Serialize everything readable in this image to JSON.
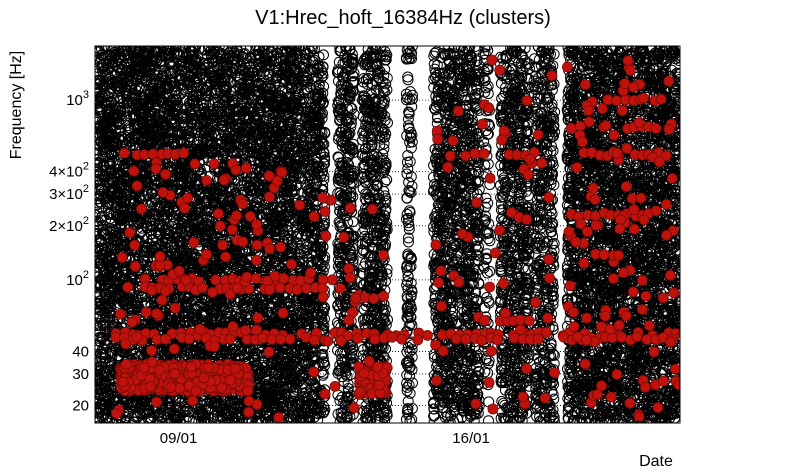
{
  "chart_data": {
    "type": "scatter",
    "title": "V1:Hrec_hoft_16384Hz (clusters)",
    "xlabel": "Date",
    "ylabel": "Frequency [Hz]",
    "x_ticks": [
      {
        "date": "2016-01-09",
        "label": "09/01"
      },
      {
        "date": "2016-01-16",
        "label": "16/01"
      }
    ],
    "xlim": [
      "2016-01-07",
      "2016-01-21"
    ],
    "ylim": [
      16,
      2000
    ],
    "y_scale": "log",
    "y_ticks": [
      {
        "value": 20,
        "label": "20"
      },
      {
        "value": 30,
        "label": "30"
      },
      {
        "value": 40,
        "label": "40"
      },
      {
        "value": 100,
        "label": "10",
        "exp": "2"
      },
      {
        "value": 200,
        "label": "2×10",
        "exp": "2"
      },
      {
        "value": 300,
        "label": "3×10",
        "exp": "2"
      },
      {
        "value": 400,
        "label": "4×10",
        "exp": "2"
      },
      {
        "value": 1000,
        "label": "10",
        "exp": "3"
      }
    ],
    "grid": true,
    "series": [
      {
        "marker": "open-circle",
        "color": "#000000",
        "segments": [
          {
            "start": "2016-01-07.00",
            "end": "2016-01-09.20",
            "density": 55
          },
          {
            "start": "2016-01-09.20",
            "end": "2016-01-11.60",
            "density": 55
          },
          {
            "start": "2016-01-11.60",
            "end": "2016-01-12.50",
            "density": 50
          },
          {
            "start": "2016-01-12.80",
            "end": "2016-01-13.20",
            "density": 45
          },
          {
            "start": "2016-01-13.40",
            "end": "2016-01-14.00",
            "density": 45
          },
          {
            "start": "2016-01-14.45",
            "end": "2016-01-14.60",
            "density": 40
          },
          {
            "start": "2016-01-15.10",
            "end": "2016-01-16.20",
            "density": 45
          },
          {
            "start": "2016-01-16.30",
            "end": "2016-01-16.45",
            "density": 25
          },
          {
            "start": "2016-01-16.70",
            "end": "2016-01-17.40",
            "density": 45
          },
          {
            "start": "2016-01-17.50",
            "end": "2016-01-18.00",
            "density": 40
          },
          {
            "start": "2016-01-18.30",
            "end": "2016-01-21.00",
            "density": 55
          }
        ],
        "sample_points": [
          [
            "2016-01-08.00",
            1200
          ],
          [
            "2016-01-09.50",
            800
          ],
          [
            "2016-01-10.00",
            150
          ],
          [
            "2016-01-11.00",
            90
          ],
          [
            "2016-01-12.00",
            500
          ],
          [
            "2016-01-13.00",
            30
          ],
          [
            "2016-01-14.00",
            60
          ],
          [
            "2016-01-15.50",
            250
          ],
          [
            "2016-01-16.40",
            1500
          ],
          [
            "2016-01-17.00",
            45
          ],
          [
            "2016-01-19.00",
            700
          ],
          [
            "2016-01-20.50",
            22
          ]
        ]
      },
      {
        "marker": "filled-circle",
        "color": "#c0120c",
        "bands": [
          {
            "freq": 50,
            "start": "2016-01-07.50",
            "end": "2016-01-21.00"
          },
          {
            "freq": 47,
            "start": "2016-01-07.50",
            "end": "2016-01-21.00"
          },
          {
            "freq": 100,
            "start": "2016-01-08.20",
            "end": "2016-01-12.80"
          },
          {
            "freq": 90,
            "start": "2016-01-08.20",
            "end": "2016-01-12.80"
          },
          {
            "freq": 500,
            "start": "2016-01-07.50",
            "end": "2016-01-09.30"
          },
          {
            "freq": 500,
            "start": "2016-01-15.50",
            "end": "2016-01-17.70"
          },
          {
            "freq": 500,
            "start": "2016-01-18.70",
            "end": "2016-01-20.80"
          },
          {
            "freq": 230,
            "start": "2016-01-18.40",
            "end": "2016-01-20.80"
          },
          {
            "freq": 1000,
            "start": "2016-01-18.90",
            "end": "2016-01-20.70"
          },
          {
            "freq": 700,
            "start": "2016-01-18.40",
            "end": "2016-01-20.80"
          },
          {
            "freq": 80,
            "start": "2016-01-13.30",
            "end": "2016-01-14.10"
          },
          {
            "freq": 60,
            "start": "2016-01-16.70",
            "end": "2016-01-17.60"
          }
        ],
        "blobs": [
          {
            "start": "2016-01-07.60",
            "end": "2016-01-10.70",
            "fmin": 24,
            "fmax": 34,
            "count": 520
          },
          {
            "start": "2016-01-13.30",
            "end": "2016-01-14.00",
            "fmin": 23,
            "fmax": 33,
            "count": 90
          }
        ],
        "scatter": [
          {
            "start": "2016-01-07.50",
            "end": "2016-01-11.60",
            "fmin": 17,
            "fmax": 450,
            "count": 110
          },
          {
            "start": "2016-01-11.60",
            "end": "2016-01-14.00",
            "fmin": 17,
            "fmax": 300,
            "count": 30
          },
          {
            "start": "2016-01-15.10",
            "end": "2016-01-18.00",
            "fmin": 17,
            "fmax": 1800,
            "count": 60
          },
          {
            "start": "2016-01-18.30",
            "end": "2016-01-21.00",
            "fmin": 17,
            "fmax": 1800,
            "count": 110
          }
        ]
      }
    ]
  }
}
